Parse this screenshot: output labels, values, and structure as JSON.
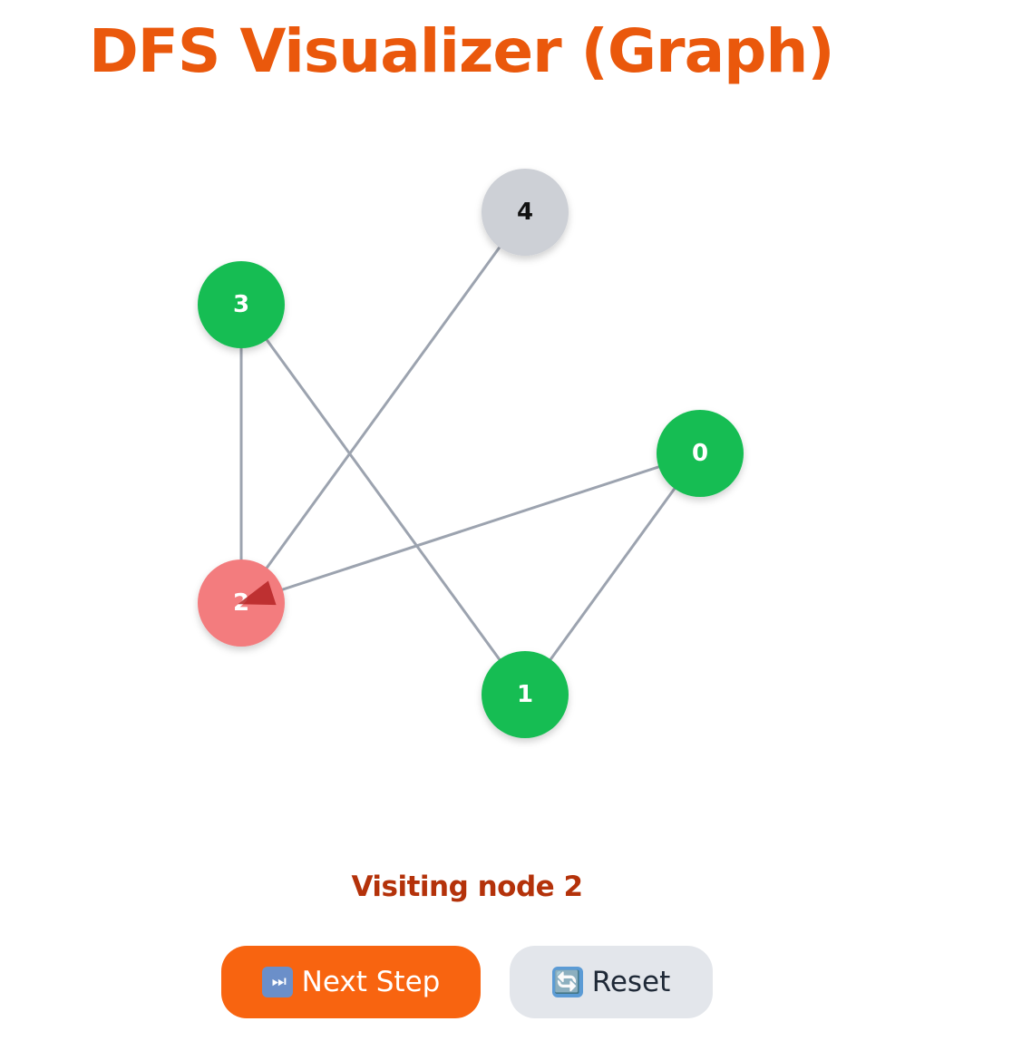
{
  "title": "DFS Visualizer (Graph)",
  "graph": {
    "nodes": [
      {
        "id": "0",
        "label": "0",
        "state": "visited"
      },
      {
        "id": "1",
        "label": "1",
        "state": "visited"
      },
      {
        "id": "2",
        "label": "2",
        "state": "current"
      },
      {
        "id": "3",
        "label": "3",
        "state": "visited"
      },
      {
        "id": "4",
        "label": "4",
        "state": "unvisited"
      }
    ],
    "edges": [
      [
        "0",
        "1"
      ],
      [
        "0",
        "2"
      ],
      [
        "1",
        "3"
      ],
      [
        "2",
        "3"
      ],
      [
        "2",
        "4"
      ]
    ],
    "active_edge": {
      "from": "0",
      "to": "2"
    }
  },
  "colors": {
    "accent": "#ea580c",
    "visited": "#16bd52",
    "current": "#f37b7e",
    "unvisited": "#cdd0d6",
    "edge": "#9ca3af",
    "arrow": "#b42323"
  },
  "status_text": "Visiting node 2",
  "controls": {
    "next_icon": "⏭",
    "next_label": "Next Step",
    "reset_icon": "🔄",
    "reset_label": "Reset"
  }
}
